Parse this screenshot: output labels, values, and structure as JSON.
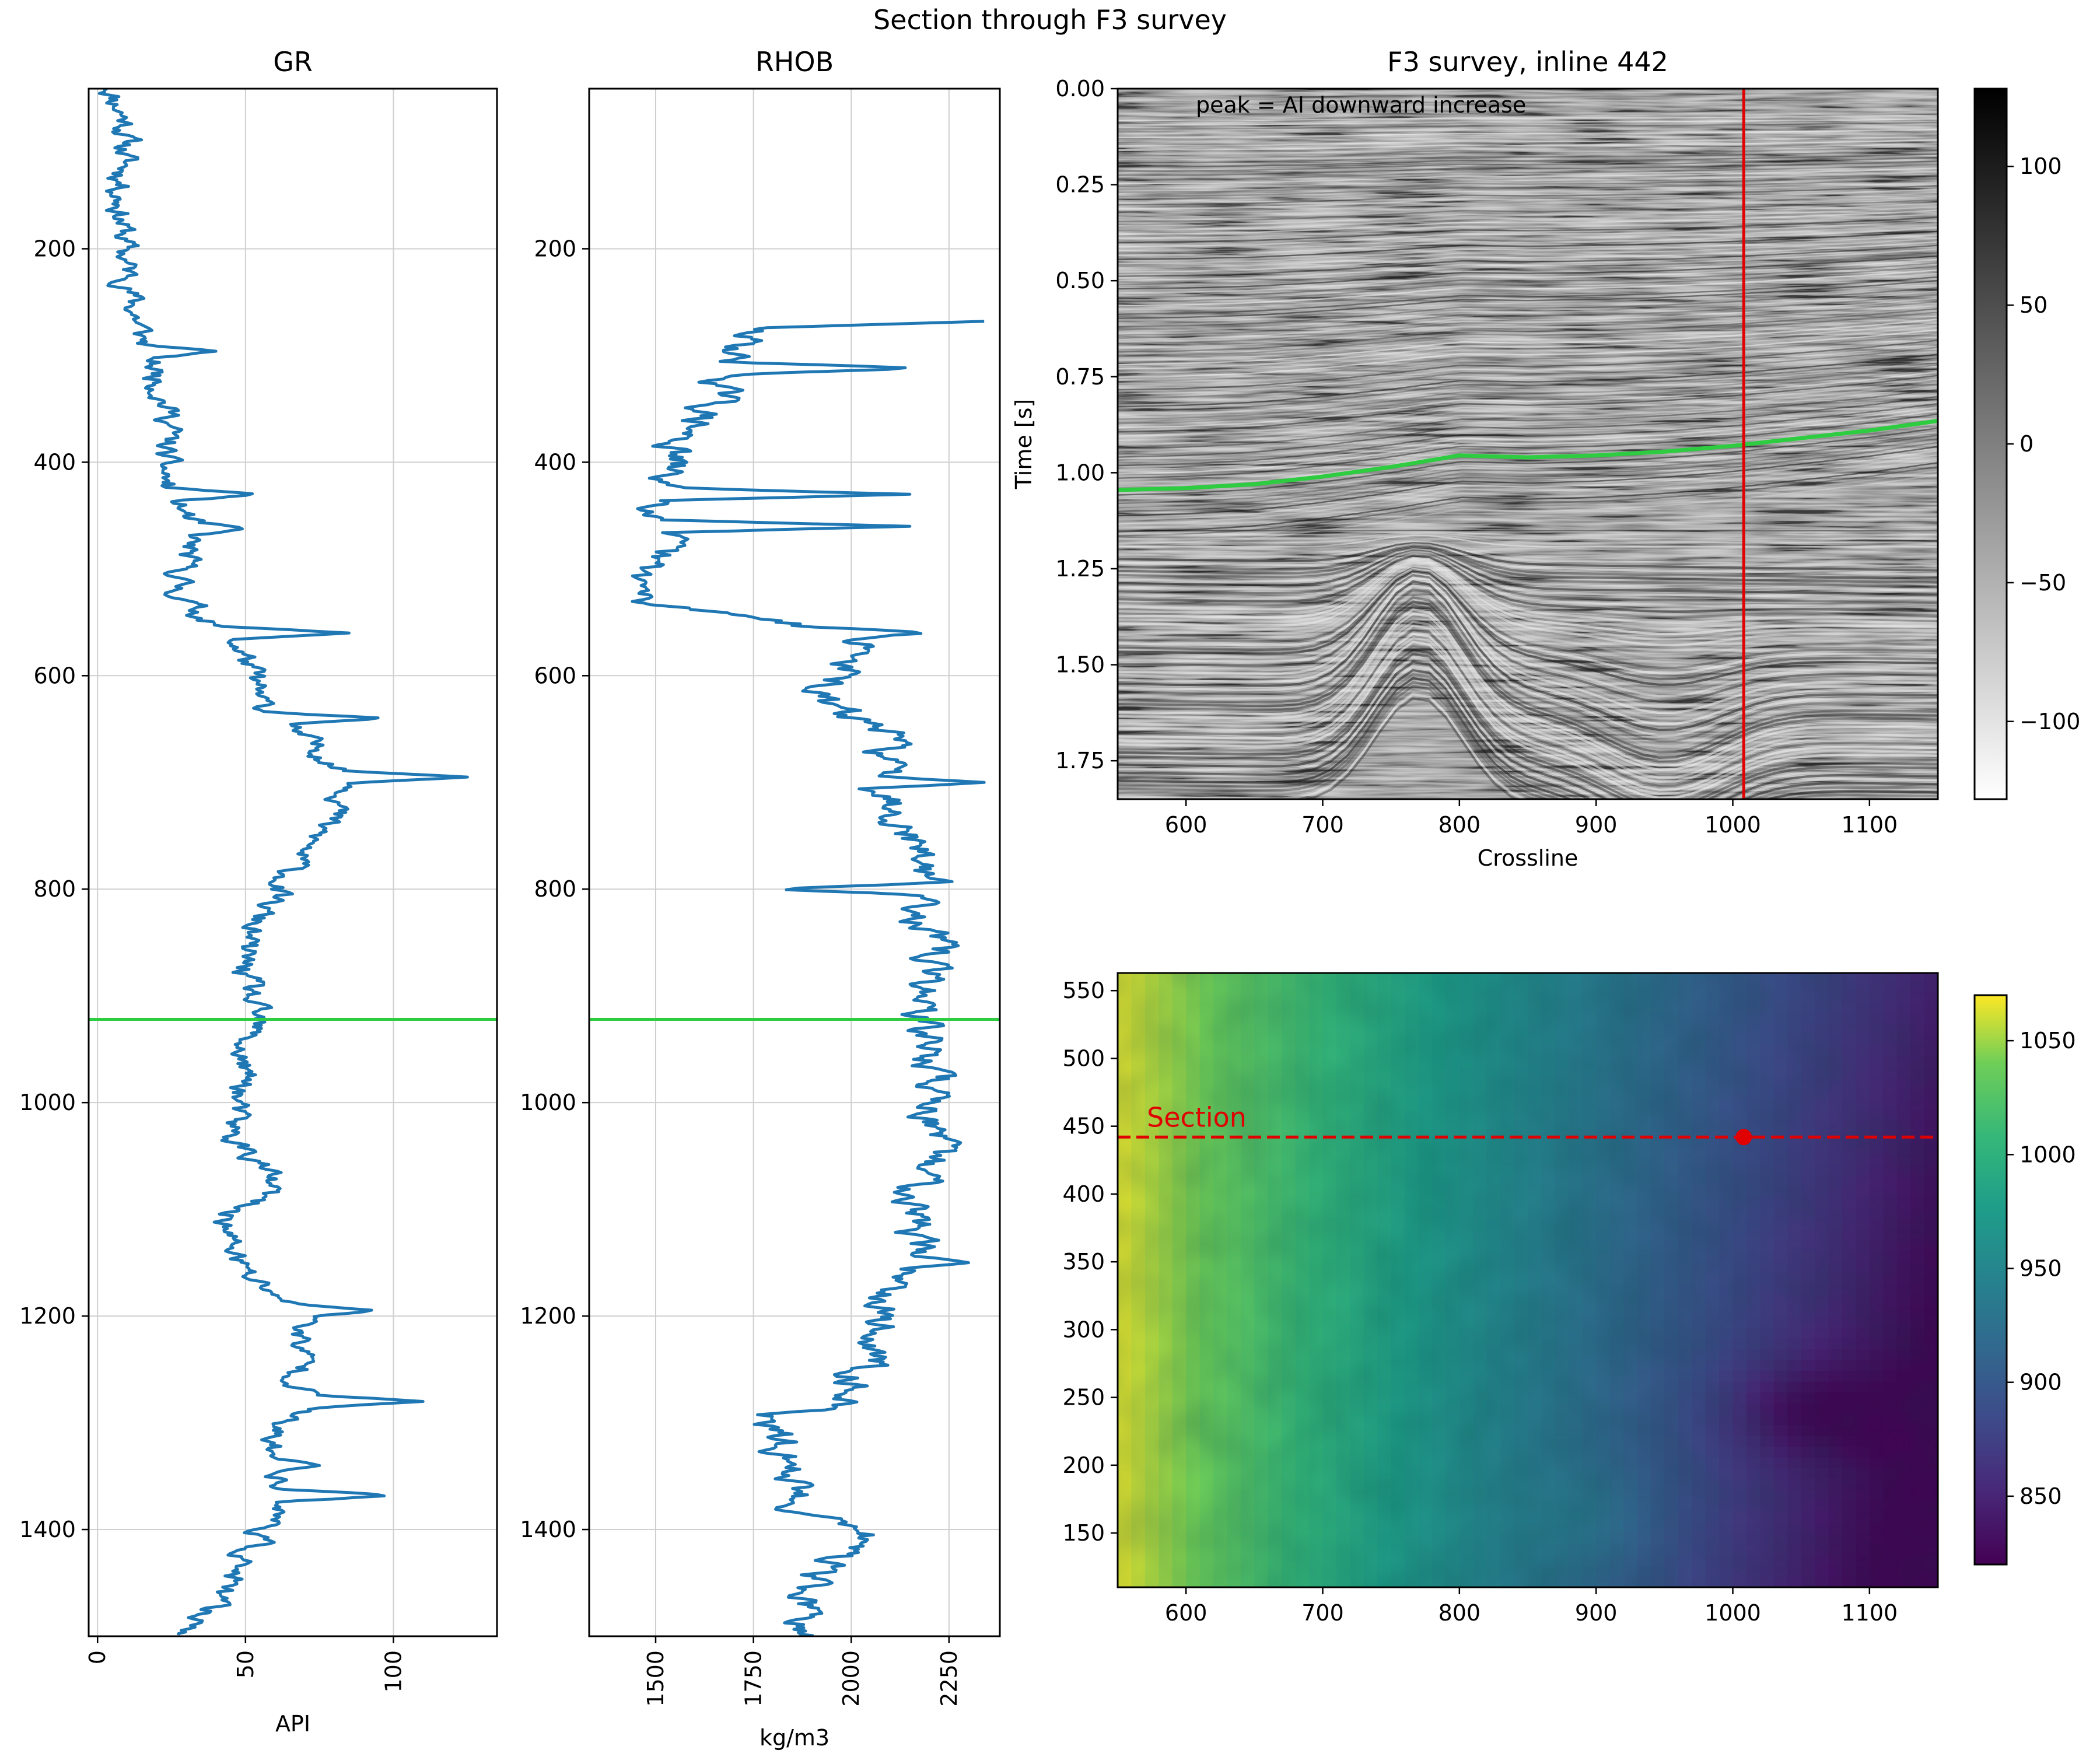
{
  "figure": {
    "suptitle": "Section through F3 survey"
  },
  "chart_data": [
    {
      "id": "gr",
      "type": "line",
      "title": "GR",
      "xlabel": "API",
      "ylabel": "",
      "xlim": [
        -3,
        135
      ],
      "ylim": [
        1500,
        50
      ],
      "xticks": [
        0,
        50,
        100
      ],
      "yticks": [
        200,
        400,
        600,
        800,
        1000,
        1200,
        1400
      ],
      "grid": true,
      "series_color": "#1f77b4",
      "marker_line": {
        "y": 922,
        "color": "#2ecc40"
      },
      "series": [
        {
          "profile": [
            [
              50,
              5
            ],
            [
              80,
              10
            ],
            [
              150,
              8
            ],
            [
              200,
              9
            ],
            [
              250,
              12
            ],
            [
              280,
              15
            ],
            [
              300,
              18
            ],
            [
              330,
              22
            ],
            [
              360,
              25
            ],
            [
              390,
              22
            ],
            [
              420,
              23
            ],
            [
              440,
              28
            ],
            [
              460,
              33
            ],
            [
              480,
              30
            ],
            [
              500,
              28
            ],
            [
              520,
              27
            ],
            [
              540,
              35
            ],
            [
              560,
              45
            ],
            [
              580,
              50
            ],
            [
              600,
              52
            ],
            [
              620,
              54
            ],
            [
              640,
              60
            ],
            [
              660,
              72
            ],
            [
              680,
              80
            ],
            [
              700,
              88
            ],
            [
              720,
              82
            ],
            [
              740,
              75
            ],
            [
              760,
              70
            ],
            [
              780,
              65
            ],
            [
              800,
              60
            ],
            [
              820,
              55
            ],
            [
              850,
              49
            ],
            [
              880,
              50
            ],
            [
              900,
              51
            ],
            [
              922,
              53
            ],
            [
              950,
              48
            ],
            [
              980,
              50
            ],
            [
              1000,
              46
            ],
            [
              1030,
              45
            ],
            [
              1060,
              57
            ],
            [
              1080,
              58
            ],
            [
              1100,
              45
            ],
            [
              1120,
              43
            ],
            [
              1140,
              47
            ],
            [
              1160,
              50
            ],
            [
              1180,
              63
            ],
            [
              1200,
              72
            ],
            [
              1220,
              68
            ],
            [
              1240,
              70
            ],
            [
              1260,
              68
            ],
            [
              1280,
              75
            ],
            [
              1300,
              58
            ],
            [
              1330,
              60
            ],
            [
              1360,
              64
            ],
            [
              1380,
              62
            ],
            [
              1400,
              56
            ],
            [
              1430,
              48
            ],
            [
              1460,
              40
            ],
            [
              1500,
              30
            ]
          ],
          "spikes": [
            [
              695,
              125
            ],
            [
              1280,
              110
            ],
            [
              1368,
              100
            ],
            [
              640,
              98
            ],
            [
              1195,
              95
            ],
            [
              560,
              85
            ],
            [
              462,
              50
            ],
            [
              430,
              55
            ],
            [
              296,
              40
            ],
            [
              1340,
              75
            ]
          ],
          "noise": 5
        }
      ]
    },
    {
      "id": "rhob",
      "type": "line",
      "title": "RHOB",
      "xlabel": "kg/m3",
      "ylabel": "",
      "xlim": [
        1330,
        2380
      ],
      "ylim": [
        1500,
        50
      ],
      "xticks": [
        1500,
        1750,
        2000,
        2250
      ],
      "yticks": [
        200,
        400,
        600,
        800,
        1000,
        1200,
        1400
      ],
      "grid": true,
      "series_color": "#1f77b4",
      "marker_line": {
        "y": 922,
        "color": "#2ecc40"
      },
      "series": [
        {
          "profile": [
            [
              268,
              1750
            ],
            [
              300,
              1700
            ],
            [
              340,
              1650
            ],
            [
              380,
              1550
            ],
            [
              420,
              1520
            ],
            [
              460,
              1530
            ],
            [
              500,
              1460
            ],
            [
              530,
              1450
            ],
            [
              545,
              1850
            ],
            [
              570,
              2050
            ],
            [
              600,
              1950
            ],
            [
              620,
              1900
            ],
            [
              650,
              2100
            ],
            [
              700,
              2080
            ],
            [
              720,
              2120
            ],
            [
              760,
              2180
            ],
            [
              800,
              2200
            ],
            [
              820,
              2190
            ],
            [
              850,
              2210
            ],
            [
              900,
              2190
            ],
            [
              922,
              2180
            ],
            [
              950,
              2200
            ],
            [
              1000,
              2220
            ],
            [
              1050,
              2200
            ],
            [
              1100,
              2170
            ],
            [
              1150,
              2160
            ],
            [
              1200,
              2080
            ],
            [
              1250,
              2040
            ],
            [
              1280,
              2000
            ],
            [
              1290,
              1770
            ],
            [
              1320,
              1820
            ],
            [
              1350,
              1860
            ],
            [
              1380,
              1870
            ],
            [
              1400,
              2080
            ],
            [
              1430,
              1920
            ],
            [
              1460,
              1880
            ],
            [
              1490,
              1860
            ],
            [
              1500,
              1860
            ]
          ],
          "spikes": [
            [
              268,
              2340
            ],
            [
              700,
              2340
            ],
            [
              312,
              2180
            ],
            [
              430,
              2150
            ],
            [
              460,
              2150
            ],
            [
              1150,
              2300
            ],
            [
              560,
              2200
            ],
            [
              800,
              1800
            ]
          ],
          "noise": 55
        }
      ]
    },
    {
      "id": "seismic",
      "type": "heatmap",
      "title": "F3 survey, inline 442",
      "xlabel": "Crossline",
      "ylabel": "Time [s]",
      "xlim": [
        550,
        1150
      ],
      "ylim": [
        1.85,
        0.0
      ],
      "xticks": [
        600,
        700,
        800,
        900,
        1000,
        1100
      ],
      "yticks": [
        0.0,
        0.25,
        0.5,
        0.75,
        1.0,
        1.25,
        1.5,
        1.75
      ],
      "ytick_labels": [
        "0.00",
        "0.25",
        "0.50",
        "0.75",
        "1.00",
        "1.25",
        "1.50",
        "1.75"
      ],
      "annotation": "peak = AI downward increase",
      "colormap": "gray_r",
      "colorbar": {
        "min": -128,
        "max": 128,
        "ticks": [
          100,
          50,
          0,
          -50,
          -100
        ],
        "tick_labels": [
          "100",
          "50",
          "0",
          "−50",
          "−100"
        ]
      },
      "well_line": {
        "x": 1008,
        "color": "#e00000"
      },
      "horizon": {
        "color": "#2ecc40",
        "x": [
          550,
          600,
          650,
          700,
          750,
          800,
          850,
          900,
          950,
          1000,
          1050,
          1100,
          1150
        ],
        "y": [
          1.045,
          1.04,
          1.03,
          1.01,
          0.985,
          0.955,
          0.96,
          0.955,
          0.945,
          0.93,
          0.91,
          0.89,
          0.865
        ]
      }
    },
    {
      "id": "horizon_map",
      "type": "heatmap",
      "title": "",
      "xlabel": "",
      "ylabel": "",
      "xlim": [
        550,
        1150
      ],
      "ylim": [
        110,
        563
      ],
      "xticks": [
        600,
        700,
        800,
        900,
        1000,
        1100
      ],
      "yticks": [
        150,
        200,
        250,
        300,
        350,
        400,
        450,
        500,
        550
      ],
      "colormap": "viridis",
      "colorbar": {
        "min": 820,
        "max": 1070,
        "ticks": [
          1050,
          1000,
          950,
          900,
          850
        ],
        "tick_labels": [
          "1050",
          "1000",
          "950",
          "900",
          "850"
        ]
      },
      "section": {
        "inline": 442,
        "label": "Section",
        "color": "#e00000",
        "well_crossline": 1008
      }
    }
  ]
}
